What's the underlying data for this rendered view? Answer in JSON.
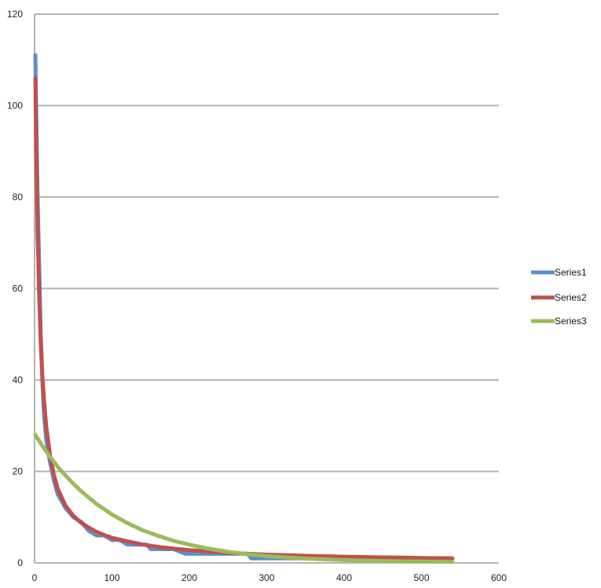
{
  "chart_data": {
    "type": "line",
    "title": "",
    "xlabel": "",
    "ylabel": "",
    "xlim": [
      0,
      600
    ],
    "ylim": [
      0,
      120
    ],
    "xticks": [
      0,
      100,
      200,
      300,
      400,
      500,
      600
    ],
    "yticks": [
      0,
      20,
      40,
      60,
      80,
      100,
      120
    ],
    "grid": "horizontal",
    "legend_position": "right",
    "series": [
      {
        "name": "Series1",
        "color": "#5b8fc9",
        "x": [
          1,
          2,
          4,
          6,
          8,
          10,
          12,
          15,
          20,
          25,
          30,
          40,
          50,
          60,
          70,
          80,
          90,
          100,
          110,
          120,
          130,
          145,
          150,
          165,
          180,
          195,
          210,
          230,
          250,
          270,
          275,
          280,
          300,
          320,
          350,
          400,
          450,
          500,
          540
        ],
        "y": [
          111,
          100,
          80,
          65,
          50,
          40,
          33,
          27,
          22,
          18,
          15,
          12,
          10,
          9,
          7,
          6,
          6,
          5,
          5,
          4,
          4,
          4,
          3,
          3,
          3,
          2,
          2,
          2,
          2,
          2,
          2,
          1,
          1,
          1,
          1,
          1,
          1,
          1,
          1
        ]
      },
      {
        "name": "Series2",
        "color": "#c0504d",
        "x": [
          1,
          2,
          4,
          6,
          8,
          10,
          12,
          15,
          20,
          25,
          30,
          40,
          50,
          60,
          70,
          80,
          90,
          100,
          120,
          140,
          160,
          180,
          200,
          225,
          250,
          300,
          350,
          400,
          450,
          500,
          540
        ],
        "y": [
          106,
          92,
          72,
          58,
          48,
          41,
          36,
          30,
          23.5,
          19.2,
          16.2,
          12.5,
          10.3,
          8.8,
          7.7,
          6.8,
          6.1,
          5.5,
          4.7,
          4.0,
          3.5,
          3.1,
          2.8,
          2.5,
          2.2,
          1.8,
          1.55,
          1.35,
          1.2,
          1.08,
          1.0
        ]
      },
      {
        "name": "Series3",
        "color": "#9bbb59",
        "x": [
          1,
          5,
          10,
          20,
          30,
          40,
          50,
          60,
          80,
          100,
          120,
          140,
          160,
          180,
          200,
          225,
          250,
          275,
          300,
          325,
          350,
          400,
          450,
          500,
          540
        ],
        "y": [
          28,
          26.9,
          25.6,
          23.2,
          21.0,
          19.1,
          17.3,
          15.7,
          12.9,
          10.6,
          8.7,
          7.1,
          5.9,
          4.8,
          4.0,
          3.1,
          2.4,
          1.9,
          1.5,
          1.2,
          0.95,
          0.62,
          0.42,
          0.3,
          0.22
        ]
      }
    ]
  }
}
